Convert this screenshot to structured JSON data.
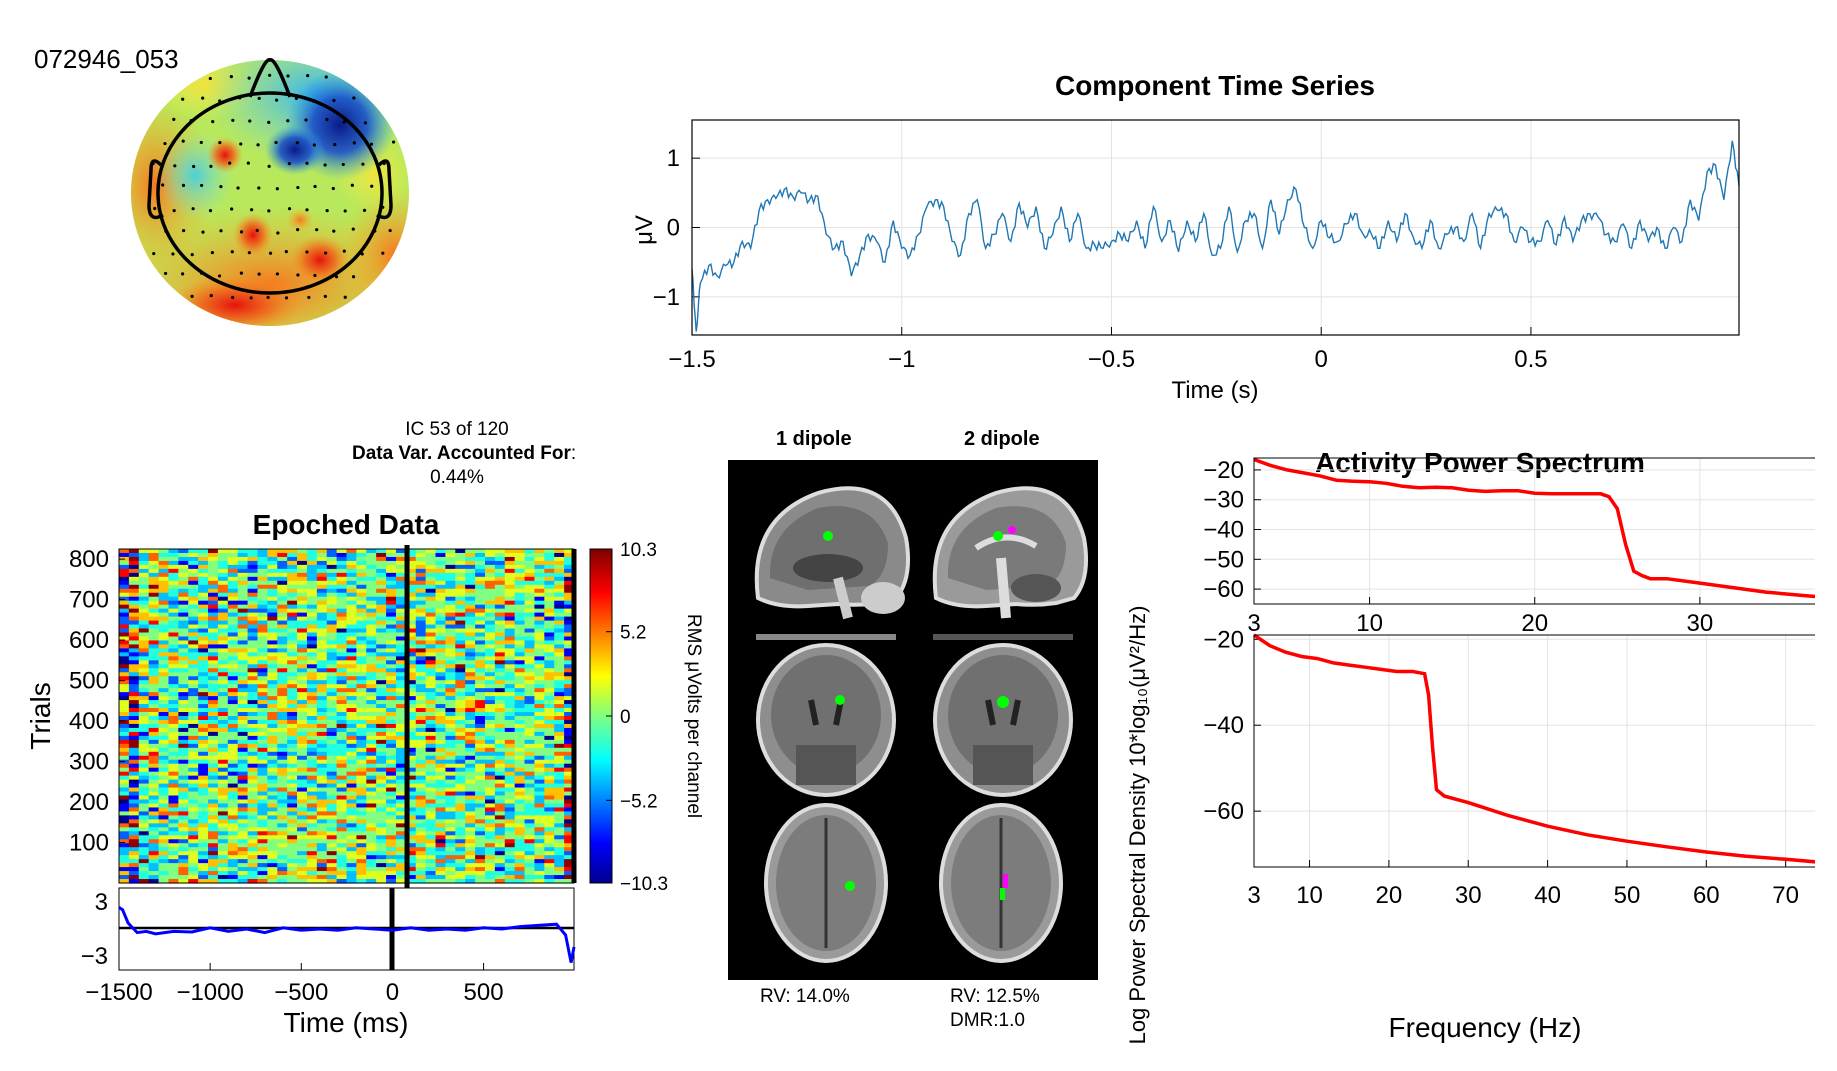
{
  "component_id": "072946_053",
  "ic_info": {
    "line1": "IC 53 of 120",
    "line2_label": "Data Var. Accounted For",
    "line2_suffix": ":",
    "line3": "0.44%"
  },
  "dipole": {
    "col1_title": "1 dipole",
    "col2_title": "2 dipole",
    "rv1": "RV: 14.0%",
    "rv2": "RV: 12.5%",
    "dmr": "DMR:1.0"
  },
  "colors": {
    "timeseries_line": "#1f77b4",
    "spectrum_line": "#ff0000",
    "erp_line": "#0000ff",
    "dipole1": "#00ff00",
    "dipole2": "#ff00ff"
  },
  "chart_data": [
    {
      "id": "component_time_series",
      "type": "line",
      "title": "Component Time Series",
      "xlabel": "Time (s)",
      "ylabel": "μV",
      "xlim": [
        -1.5,
        0.996
      ],
      "ylim": [
        -1.55,
        1.55
      ],
      "xticks": [
        -1.5,
        -1,
        -0.5,
        0,
        0.5
      ],
      "xtick_labels": [
        "−1.5",
        "−1",
        "−0.5",
        "0",
        "0.5"
      ],
      "yticks": [
        -1,
        0,
        1
      ],
      "ytick_labels": [
        "−1",
        "0",
        "1"
      ],
      "grid": true,
      "points": [
        [
          -1.5,
          -0.6
        ],
        [
          -1.49,
          -1.5
        ],
        [
          -1.48,
          -0.8
        ],
        [
          -1.46,
          -0.55
        ],
        [
          -1.44,
          -0.7
        ],
        [
          -1.42,
          -0.55
        ],
        [
          -1.4,
          -0.5
        ],
        [
          -1.38,
          -0.2
        ],
        [
          -1.36,
          -0.3
        ],
        [
          -1.34,
          0.25
        ],
        [
          -1.32,
          0.4
        ],
        [
          -1.3,
          0.42
        ],
        [
          -1.28,
          0.55
        ],
        [
          -1.26,
          0.45
        ],
        [
          -1.24,
          0.5
        ],
        [
          -1.22,
          0.4
        ],
        [
          -1.2,
          0.45
        ],
        [
          -1.18,
          -0.1
        ],
        [
          -1.16,
          -0.3
        ],
        [
          -1.14,
          -0.2
        ],
        [
          -1.12,
          -0.7
        ],
        [
          -1.1,
          -0.4
        ],
        [
          -1.08,
          -0.1
        ],
        [
          -1.06,
          -0.2
        ],
        [
          -1.04,
          -0.5
        ],
        [
          -1.02,
          0.1
        ],
        [
          -1.0,
          -0.3
        ],
        [
          -0.98,
          -0.4
        ],
        [
          -0.96,
          -0.1
        ],
        [
          -0.94,
          0.3
        ],
        [
          -0.92,
          0.4
        ],
        [
          -0.9,
          0.3
        ],
        [
          -0.88,
          -0.2
        ],
        [
          -0.86,
          -0.4
        ],
        [
          -0.84,
          0.2
        ],
        [
          -0.82,
          0.4
        ],
        [
          -0.8,
          -0.3
        ],
        [
          -0.78,
          -0.1
        ],
        [
          -0.76,
          0.2
        ],
        [
          -0.74,
          -0.2
        ],
        [
          -0.72,
          0.35
        ],
        [
          -0.7,
          0.0
        ],
        [
          -0.68,
          0.3
        ],
        [
          -0.66,
          -0.3
        ],
        [
          -0.64,
          -0.1
        ],
        [
          -0.62,
          0.3
        ],
        [
          -0.6,
          -0.2
        ],
        [
          -0.58,
          0.2
        ],
        [
          -0.56,
          -0.3
        ],
        [
          -0.54,
          -0.25
        ],
        [
          -0.52,
          -0.3
        ],
        [
          -0.5,
          -0.2
        ],
        [
          -0.48,
          -0.1
        ],
        [
          -0.46,
          -0.2
        ],
        [
          -0.44,
          0.1
        ],
        [
          -0.42,
          -0.3
        ],
        [
          -0.4,
          0.3
        ],
        [
          -0.38,
          -0.2
        ],
        [
          -0.36,
          0.1
        ],
        [
          -0.34,
          -0.35
        ],
        [
          -0.32,
          0.1
        ],
        [
          -0.3,
          -0.2
        ],
        [
          -0.28,
          0.2
        ],
        [
          -0.26,
          -0.4
        ],
        [
          -0.24,
          -0.3
        ],
        [
          -0.22,
          0.3
        ],
        [
          -0.2,
          -0.35
        ],
        [
          -0.18,
          0.1
        ],
        [
          -0.16,
          0.2
        ],
        [
          -0.14,
          -0.3
        ],
        [
          -0.12,
          0.4
        ],
        [
          -0.1,
          -0.1
        ],
        [
          -0.08,
          0.4
        ],
        [
          -0.06,
          0.55
        ],
        [
          -0.04,
          0.0
        ],
        [
          -0.02,
          -0.3
        ],
        [
          0.0,
          0.1
        ],
        [
          0.02,
          -0.15
        ],
        [
          0.04,
          -0.2
        ],
        [
          0.06,
          0.05
        ],
        [
          0.08,
          0.2
        ],
        [
          0.1,
          -0.1
        ],
        [
          0.12,
          -0.1
        ],
        [
          0.14,
          -0.3
        ],
        [
          0.16,
          0.1
        ],
        [
          0.18,
          -0.2
        ],
        [
          0.2,
          0.2
        ],
        [
          0.22,
          -0.15
        ],
        [
          0.24,
          -0.3
        ],
        [
          0.26,
          0.1
        ],
        [
          0.28,
          -0.3
        ],
        [
          0.3,
          -0.1
        ],
        [
          0.32,
          0.0
        ],
        [
          0.34,
          -0.2
        ],
        [
          0.36,
          0.2
        ],
        [
          0.38,
          -0.3
        ],
        [
          0.4,
          0.2
        ],
        [
          0.42,
          0.25
        ],
        [
          0.44,
          0.2
        ],
        [
          0.46,
          -0.2
        ],
        [
          0.48,
          0.0
        ],
        [
          0.5,
          -0.2
        ],
        [
          0.52,
          -0.2
        ],
        [
          0.54,
          0.1
        ],
        [
          0.56,
          -0.25
        ],
        [
          0.58,
          0.15
        ],
        [
          0.6,
          -0.2
        ],
        [
          0.62,
          0.1
        ],
        [
          0.64,
          0.2
        ],
        [
          0.66,
          0.15
        ],
        [
          0.68,
          -0.1
        ],
        [
          0.7,
          -0.2
        ],
        [
          0.72,
          0.05
        ],
        [
          0.74,
          -0.3
        ],
        [
          0.76,
          0.1
        ],
        [
          0.78,
          -0.2
        ],
        [
          0.8,
          0.0
        ],
        [
          0.82,
          -0.3
        ],
        [
          0.84,
          0.0
        ],
        [
          0.86,
          -0.2
        ],
        [
          0.88,
          0.4
        ],
        [
          0.9,
          0.1
        ],
        [
          0.92,
          0.8
        ],
        [
          0.94,
          0.9
        ],
        [
          0.96,
          0.4
        ],
        [
          0.98,
          1.25
        ],
        [
          0.996,
          0.6
        ]
      ]
    },
    {
      "id": "epoched_data",
      "type": "heatmap",
      "title": "Epoched Data",
      "ylabel": "Trials",
      "xlabel": "Time (ms)",
      "xlim": [
        -1500,
        996
      ],
      "xticks": [
        -1500,
        -1000,
        -500,
        0,
        500
      ],
      "xtick_labels": [
        "−1500",
        "−1000",
        "−500",
        "0",
        "500"
      ],
      "trial_ticks": [
        100,
        200,
        300,
        400,
        500,
        600,
        700,
        800
      ],
      "n_trials": 825,
      "event_time_ms": 80,
      "colorbar": {
        "label": "RMS μVolts per channel",
        "ticks": [
          10.3,
          5.2,
          0,
          -5.2,
          -10.3
        ],
        "tick_labels": [
          "10.3",
          "5.2",
          "0",
          "−5.2",
          "−10.3"
        ]
      },
      "erp": {
        "ylim": [
          -3,
          3
        ],
        "ytick_labels": [
          "3",
          "−3"
        ],
        "points": [
          [
            -1500,
            1.8
          ],
          [
            -1480,
            1.6
          ],
          [
            -1450,
            0.5
          ],
          [
            -1400,
            -0.3
          ],
          [
            -1350,
            -0.2
          ],
          [
            -1300,
            -0.4
          ],
          [
            -1200,
            -0.2
          ],
          [
            -1100,
            -0.25
          ],
          [
            -1000,
            0.1
          ],
          [
            -900,
            -0.2
          ],
          [
            -800,
            0.0
          ],
          [
            -700,
            -0.3
          ],
          [
            -600,
            0.1
          ],
          [
            -500,
            -0.1
          ],
          [
            -400,
            0.0
          ],
          [
            -300,
            -0.1
          ],
          [
            -200,
            0.1
          ],
          [
            -100,
            0.0
          ],
          [
            0,
            -0.1
          ],
          [
            100,
            0.1
          ],
          [
            200,
            -0.1
          ],
          [
            300,
            0.0
          ],
          [
            400,
            -0.1
          ],
          [
            500,
            0.1
          ],
          [
            600,
            0.0
          ],
          [
            700,
            0.2
          ],
          [
            800,
            0.3
          ],
          [
            900,
            0.4
          ],
          [
            950,
            -0.5
          ],
          [
            980,
            -2.8
          ],
          [
            996,
            -1.5
          ]
        ]
      }
    },
    {
      "id": "activity_power_spectrum",
      "type": "line",
      "title": "Activity Power Spectrum",
      "ylabel": "Log Power Spectral Density 10*log₁₀(μV²/Hz)",
      "xlabel": "Frequency (Hz)",
      "panels": [
        {
          "xlim": [
            3,
            40
          ],
          "ylim": [
            -65,
            -16
          ],
          "xticks": [
            3,
            10,
            20,
            30,
            40
          ],
          "yticks": [
            -20,
            -30,
            -40,
            -50,
            -60
          ],
          "ytick_labels": [
            "−20",
            "−30",
            "−40",
            "−50",
            "−60"
          ],
          "grid": true,
          "points": [
            [
              3,
              -16.5
            ],
            [
              4,
              -18.5
            ],
            [
              5,
              -20
            ],
            [
              6,
              -21
            ],
            [
              7,
              -22
            ],
            [
              8,
              -23.5
            ],
            [
              9,
              -23.8
            ],
            [
              10,
              -24
            ],
            [
              11,
              -24.5
            ],
            [
              12,
              -25.5
            ],
            [
              13,
              -26
            ],
            [
              14,
              -25.8
            ],
            [
              15,
              -26
            ],
            [
              16,
              -26.8
            ],
            [
              17,
              -27.2
            ],
            [
              18,
              -27
            ],
            [
              19,
              -27
            ],
            [
              20,
              -27.8
            ],
            [
              21,
              -28
            ],
            [
              22,
              -28
            ],
            [
              23,
              -28
            ],
            [
              24,
              -28
            ],
            [
              24.5,
              -29
            ],
            [
              25,
              -33
            ],
            [
              25.5,
              -45
            ],
            [
              26,
              -54
            ],
            [
              26.5,
              -55.5
            ],
            [
              27,
              -56.5
            ],
            [
              28,
              -56.5
            ],
            [
              30,
              -58
            ],
            [
              32,
              -59.5
            ],
            [
              34,
              -61
            ],
            [
              36,
              -62
            ],
            [
              38,
              -63
            ],
            [
              40,
              -64
            ]
          ]
        },
        {
          "xlim": [
            3,
            80
          ],
          "ylim": [
            -73,
            -19
          ],
          "xticks": [
            3,
            10,
            20,
            30,
            40,
            50,
            60,
            70,
            80
          ],
          "yticks": [
            -20,
            -40,
            -60
          ],
          "ytick_labels": [
            "−20",
            "−40",
            "−60"
          ],
          "grid": true,
          "points": [
            [
              3,
              -19
            ],
            [
              5,
              -21.5
            ],
            [
              7,
              -23
            ],
            [
              9,
              -24
            ],
            [
              11,
              -24.5
            ],
            [
              13,
              -25.5
            ],
            [
              15,
              -26
            ],
            [
              17,
              -26.5
            ],
            [
              19,
              -27
            ],
            [
              21,
              -27.5
            ],
            [
              23,
              -27.5
            ],
            [
              24.5,
              -28
            ],
            [
              25,
              -33
            ],
            [
              25.5,
              -45
            ],
            [
              26,
              -55
            ],
            [
              27,
              -56.5
            ],
            [
              30,
              -58
            ],
            [
              35,
              -61
            ],
            [
              40,
              -63.5
            ],
            [
              45,
              -65.5
            ],
            [
              50,
              -67
            ],
            [
              55,
              -68.3
            ],
            [
              60,
              -69.5
            ],
            [
              65,
              -70.5
            ],
            [
              70,
              -71.2
            ],
            [
              75,
              -72
            ],
            [
              80,
              -72.5
            ]
          ]
        }
      ]
    }
  ]
}
